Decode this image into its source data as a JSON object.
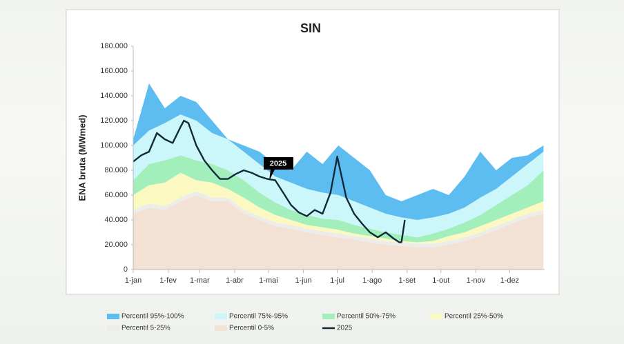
{
  "chart_data": {
    "type": "stacked_area",
    "title": "SIN",
    "y_label": "ENA bruta (MWmed)",
    "x": [
      0,
      14,
      28,
      42,
      56,
      70,
      84,
      98,
      112,
      126,
      140,
      154,
      168,
      182,
      196,
      210,
      224,
      238,
      252,
      266,
      280,
      294,
      308,
      322,
      336,
      350,
      364
    ],
    "xlim": [
      0,
      365
    ],
    "xticks": [
      {
        "value": 0,
        "label": "1-jan"
      },
      {
        "value": 31,
        "label": "1-fev"
      },
      {
        "value": 59,
        "label": "1-mar"
      },
      {
        "value": 90,
        "label": "1-abr"
      },
      {
        "value": 120,
        "label": "1-mai"
      },
      {
        "value": 151,
        "label": "1-jun"
      },
      {
        "value": 181,
        "label": "1-jul"
      },
      {
        "value": 212,
        "label": "1-ago"
      },
      {
        "value": 243,
        "label": "1-set"
      },
      {
        "value": 273,
        "label": "1-out"
      },
      {
        "value": 304,
        "label": "1-nov"
      },
      {
        "value": 334,
        "label": "1-dez"
      }
    ],
    "ylim": [
      0,
      180000
    ],
    "yticks": [
      0,
      {
        "value": 20000,
        "label": "20.000"
      },
      {
        "value": 40000,
        "label": "40.000"
      },
      {
        "value": 60000,
        "label": "60.000"
      },
      {
        "value": 80000,
        "label": "80.000"
      },
      {
        "value": 100000,
        "label": "100.000"
      },
      {
        "value": 120000,
        "label": "120.000"
      },
      {
        "value": 140000,
        "label": "140.000"
      },
      {
        "value": 160000,
        "label": "160.000"
      },
      {
        "value": 180000,
        "label": "180.000"
      }
    ],
    "grid": false,
    "legend": "bottom",
    "series": [
      {
        "name": "Percentil 0-5%",
        "color": "#f3e2d4",
        "values": [
          45000,
          50000,
          48000,
          55000,
          60000,
          55000,
          55000,
          45000,
          40000,
          35000,
          33000,
          30000,
          28000,
          26000,
          24000,
          22000,
          20000,
          19000,
          18000,
          18000,
          20000,
          23000,
          27000,
          32000,
          37000,
          42000,
          45000
        ]
      },
      {
        "name": "Percentil 5-25%",
        "color": "#ececea",
        "values": [
          3000,
          3000,
          3000,
          3000,
          3000,
          3000,
          3000,
          3000,
          3000,
          3000,
          3000,
          3000,
          3000,
          3000,
          3000,
          3000,
          3000,
          3000,
          3000,
          3000,
          3000,
          3000,
          3000,
          3000,
          3000,
          3000,
          3000
        ]
      },
      {
        "name": "Percentil 25%-50%",
        "color": "#fbf8c2",
        "values": [
          12000,
          15000,
          19000,
          20000,
          9000,
          12000,
          7000,
          10000,
          7000,
          6000,
          4000,
          3000,
          3000,
          3000,
          2000,
          2000,
          2000,
          1000,
          1000,
          2000,
          4000,
          4000,
          5000,
          5000,
          5000,
          5000,
          7000
        ]
      },
      {
        "name": "Percentil 50%-75%",
        "color": "#a3efbc",
        "values": [
          12000,
          17000,
          18000,
          14000,
          16000,
          15000,
          15000,
          14000,
          12000,
          10000,
          8000,
          8000,
          7000,
          8000,
          7000,
          6000,
          5000,
          5000,
          4000,
          6000,
          6000,
          8000,
          9000,
          12000,
          15000,
          18000,
          25000
        ]
      },
      {
        "name": "Percentil 75%-95%",
        "color": "#cbf6fa",
        "values": [
          28000,
          27000,
          30000,
          33000,
          32000,
          25000,
          25000,
          23000,
          23000,
          21000,
          22000,
          21000,
          21000,
          20000,
          19000,
          17000,
          15000,
          14000,
          14000,
          13000,
          12000,
          12000,
          14000,
          13000,
          15000,
          17000,
          15000
        ]
      },
      {
        "name": "Percentil 95%-100%",
        "color": "#5dbdf0",
        "values": [
          5000,
          38000,
          12000,
          15000,
          15000,
          10000,
          0,
          5000,
          10000,
          10000,
          10000,
          30000,
          23000,
          40000,
          35000,
          30000,
          15000,
          13000,
          20000,
          23000,
          15000,
          25000,
          37000,
          15000,
          15000,
          7000,
          5000
        ]
      },
      {
        "name": "2025",
        "color": "#10293a",
        "type": "line",
        "x": [
          0,
          7,
          14,
          21,
          28,
          35,
          42,
          45,
          49,
          56,
          63,
          70,
          77,
          84,
          91,
          98,
          105,
          112,
          119,
          126,
          133,
          140,
          147,
          154,
          161,
          168,
          175,
          181,
          189,
          196,
          203,
          210,
          217,
          224,
          231,
          236,
          238,
          241
        ],
        "values": [
          87000,
          92000,
          95000,
          110000,
          105000,
          102000,
          115000,
          120000,
          118000,
          100000,
          88000,
          80000,
          73000,
          73000,
          77000,
          80000,
          78000,
          75000,
          73000,
          72000,
          62000,
          52000,
          46000,
          43000,
          48000,
          45000,
          62000,
          91000,
          58000,
          45000,
          37000,
          30000,
          26000,
          30000,
          25000,
          22000,
          22000,
          40000
        ]
      }
    ],
    "annotation": "2025"
  }
}
